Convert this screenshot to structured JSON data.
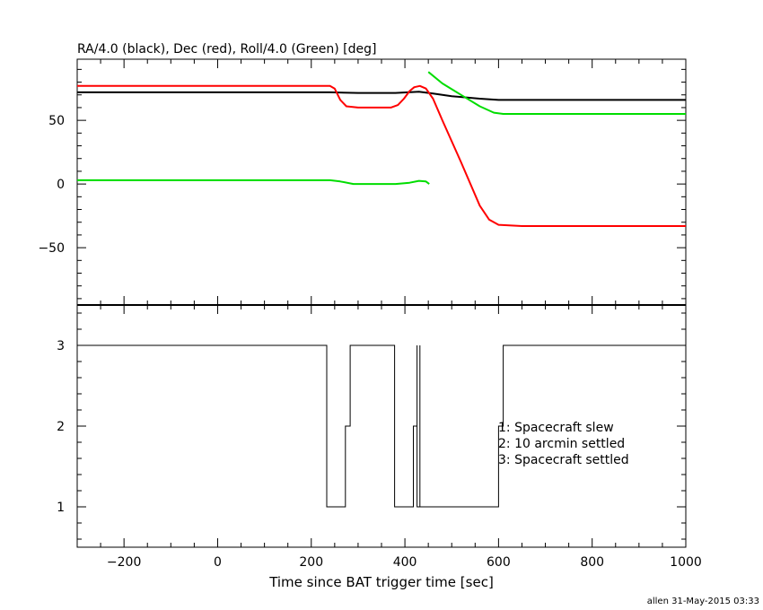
{
  "chart_data": [
    {
      "type": "line",
      "title": "RA/4.0 (black), Dec (red), Roll/4.0 (Green) [deg]",
      "xlim": [
        -300,
        1000
      ],
      "ylim": [
        -95,
        98
      ],
      "yticks": [
        -50,
        0,
        50
      ],
      "xticks": [
        -200,
        0,
        200,
        400,
        600,
        800,
        1000
      ],
      "grid": false,
      "series": [
        {
          "name": "RA/4.0 (black)",
          "color": "#000000",
          "points": [
            [
              -300,
              72
            ],
            [
              240,
              72
            ],
            [
              300,
              71.5
            ],
            [
              380,
              71.5
            ],
            [
              430,
              72.5
            ],
            [
              460,
              71
            ],
            [
              500,
              69
            ],
            [
              560,
              67
            ],
            [
              600,
              66
            ],
            [
              1000,
              66
            ]
          ]
        },
        {
          "name": "Dec (red)",
          "color": "#ff0000",
          "points": [
            [
              -300,
              77
            ],
            [
              240,
              77
            ],
            [
              250,
              75
            ],
            [
              262,
              66
            ],
            [
              275,
              61
            ],
            [
              300,
              60
            ],
            [
              370,
              60
            ],
            [
              385,
              62
            ],
            [
              398,
              67
            ],
            [
              410,
              73
            ],
            [
              420,
              76
            ],
            [
              432,
              77
            ],
            [
              445,
              75
            ],
            [
              460,
              67
            ],
            [
              480,
              50
            ],
            [
              520,
              17
            ],
            [
              560,
              -17
            ],
            [
              580,
              -28
            ],
            [
              600,
              -32
            ],
            [
              650,
              -33
            ],
            [
              1000,
              -33
            ]
          ]
        },
        {
          "name": "Roll/4.0 (Green)",
          "color": "#00dd00",
          "points": [
            [
              -300,
              3
            ],
            [
              240,
              3
            ],
            [
              262,
              2
            ],
            [
              290,
              0
            ],
            [
              380,
              0
            ],
            [
              410,
              1
            ],
            [
              430,
              2.5
            ],
            [
              445,
              2
            ],
            [
              452,
              0
            ]
          ]
        },
        {
          "name": "Roll/4.0 (Green) wrapped",
          "color": "#00dd00",
          "points": [
            [
              450,
              88
            ],
            [
              480,
              79
            ],
            [
              520,
              70
            ],
            [
              560,
              61
            ],
            [
              590,
              56
            ],
            [
              610,
              55
            ],
            [
              1000,
              55
            ]
          ]
        }
      ]
    },
    {
      "type": "line",
      "xlabel": "Time since BAT trigger time [sec]",
      "xlim": [
        -300,
        1000
      ],
      "ylim": [
        0.5,
        3.5
      ],
      "yticks": [
        1,
        2,
        3
      ],
      "xticks": [
        -200,
        0,
        200,
        400,
        600,
        800,
        1000
      ],
      "step": true,
      "series": [
        {
          "color": "#000000",
          "points": [
            [
              -300,
              3
            ],
            [
              233,
              3
            ],
            [
              233,
              1
            ],
            [
              273,
              1
            ],
            [
              273,
              2
            ],
            [
              283,
              2
            ],
            [
              283,
              3
            ],
            [
              378,
              3
            ],
            [
              378,
              1
            ],
            [
              418,
              1
            ],
            [
              418,
              2
            ],
            [
              426,
              2
            ],
            [
              426,
              3
            ],
            [
              426,
              1
            ],
            [
              432,
              1
            ],
            [
              432,
              3
            ],
            [
              432,
              1
            ],
            [
              600,
              1
            ],
            [
              600,
              2
            ],
            [
              610,
              2
            ],
            [
              610,
              3
            ],
            [
              1000,
              3
            ]
          ]
        }
      ],
      "annotations": [
        "1: Spacecraft slew",
        "2: 10 arcmin settled",
        "3: Spacecraft settled"
      ]
    }
  ],
  "footer": "allen 31-May-2015 03:33"
}
